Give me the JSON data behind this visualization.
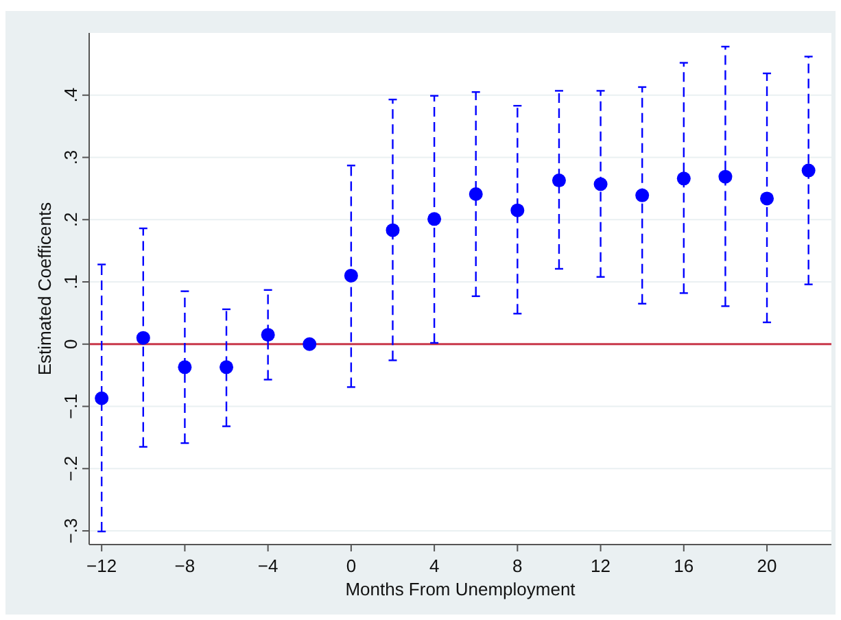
{
  "chart_data": {
    "type": "scatter",
    "xlabel": "Months From Unemployment",
    "ylabel": "Estimated Coefficents",
    "x": [
      -12,
      -10,
      -8,
      -6,
      -4,
      -2,
      0,
      2,
      4,
      6,
      8,
      10,
      12,
      14,
      16,
      18,
      20,
      22
    ],
    "series": [
      {
        "color": "#0000ff",
        "values": [
          -0.087,
          0.01,
          -0.037,
          -0.037,
          0.015,
          0,
          0.11,
          0.183,
          0.201,
          0.241,
          0.215,
          0.263,
          0.257,
          0.239,
          0.266,
          0.269,
          0.234,
          0.279
        ],
        "errors": [
          [
            -0.301,
            0.128
          ],
          [
            -0.165,
            0.186
          ],
          [
            -0.159,
            0.085
          ],
          [
            -0.132,
            0.056
          ],
          [
            -0.057,
            0.087
          ],
          null,
          [
            -0.069,
            0.287
          ],
          [
            -0.026,
            0.393
          ],
          [
            0.002,
            0.399
          ],
          [
            0.077,
            0.405
          ],
          [
            0.049,
            0.383
          ],
          [
            0.121,
            0.407
          ],
          [
            0.108,
            0.407
          ],
          [
            0.065,
            0.413
          ],
          [
            0.082,
            0.452
          ],
          [
            0.061,
            0.478
          ],
          [
            0.035,
            0.435
          ],
          [
            0.096,
            0.462
          ]
        ]
      }
    ],
    "marker": "circle",
    "xlim": [
      -12.6,
      23.1
    ],
    "xticks": [
      {
        "value": -12,
        "label": "−12"
      },
      {
        "value": -8,
        "label": "−8"
      },
      {
        "value": -4,
        "label": "−4"
      },
      0,
      4,
      8,
      12,
      16,
      20
    ],
    "ylim": [
      -0.322,
      0.5
    ],
    "yticks": [
      {
        "value": -0.3,
        "label": "−.3"
      },
      {
        "value": -0.2,
        "label": "−.2"
      },
      {
        "value": -0.1,
        "label": "−.1"
      },
      0,
      {
        "value": 0.1,
        "label": ".1"
      },
      {
        "value": 0.2,
        "label": ".2"
      },
      {
        "value": 0.3,
        "label": ".3"
      },
      {
        "value": 0.4,
        "label": ".4"
      }
    ],
    "grid": "y",
    "ref_lines": [
      {
        "axis": "y",
        "value": 0,
        "color": "#c8374a"
      }
    ]
  }
}
